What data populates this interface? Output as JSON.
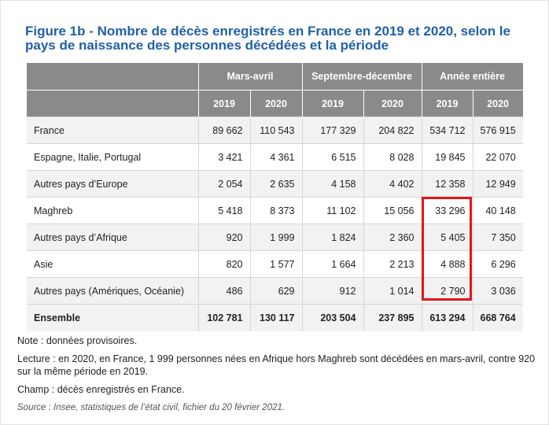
{
  "title": "Figure 1b - Nombre de décès enregistrés en France en 2019 et 2020, selon le pays de naissance des personnes décédées et la période",
  "table": {
    "groups": [
      "Mars-avril",
      "Septembre-décembre",
      "Année entière"
    ],
    "years": [
      "2019",
      "2020",
      "2019",
      "2020",
      "2019",
      "2020"
    ],
    "rows": [
      {
        "label": "France",
        "values": [
          "89 662",
          "110 543",
          "177 329",
          "204 822",
          "534 712",
          "576 915"
        ]
      },
      {
        "label": "Espagne, Italie, Portugal",
        "values": [
          "3 421",
          "4 361",
          "6 515",
          "8 028",
          "19 845",
          "22 070"
        ]
      },
      {
        "label": "Autres pays d’Europe",
        "values": [
          "2 054",
          "2 635",
          "4 158",
          "4 402",
          "12 358",
          "12 949"
        ]
      },
      {
        "label": "Maghreb",
        "values": [
          "5 418",
          "8 373",
          "11 102",
          "15 056",
          "33 296",
          "40 148"
        ]
      },
      {
        "label": "Autres pays d’Afrique",
        "values": [
          "920",
          "1 999",
          "1 824",
          "2 360",
          "5 405",
          "7 350"
        ]
      },
      {
        "label": "Asie",
        "values": [
          "820",
          "1 577",
          "1 664",
          "2 213",
          "4 888",
          "6 296"
        ]
      },
      {
        "label": "Autres pays (Amériques, Océanie)",
        "values": [
          "486",
          "629",
          "912",
          "1 014",
          "2 790",
          "3 036"
        ]
      }
    ],
    "total": {
      "label": "Ensemble",
      "values": [
        "102 781",
        "130 117",
        "203 504",
        "237 895",
        "613 294",
        "668 764"
      ]
    }
  },
  "notes": {
    "note": "Note : données provisoires.",
    "lecture": "Lecture : en 2020, en France, 1 999 personnes nées en Afrique hors Maghreb sont décédées en mars-avril, contre 920 sur la même période en 2019.",
    "champ": "Champ : décès enregistrés en France.",
    "source": "Source : Insee, statistiques de l’état civil, fichier du 20 février 2021."
  },
  "colors": {
    "title": "#2160a8",
    "header_bg": "#8a8a8a",
    "highlight": "#e3151a"
  }
}
